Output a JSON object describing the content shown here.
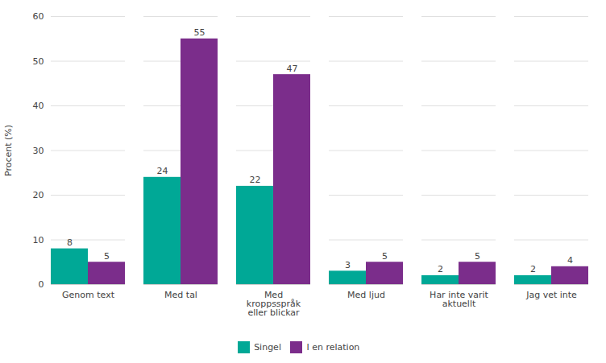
{
  "chart_data": {
    "type": "bar",
    "categories": [
      "Genom text",
      "Med tal",
      "Med\nkroppsspråk\neller blickar",
      "Med ljud",
      "Har inte varit\naktuellt",
      "Jag vet inte"
    ],
    "series": [
      {
        "name": "Singel",
        "color": "#00A896",
        "values": [
          8,
          24,
          22,
          3,
          2,
          2
        ]
      },
      {
        "name": "I en relation",
        "color": "#7B2D8B",
        "values": [
          5,
          55,
          47,
          5,
          5,
          4
        ]
      }
    ],
    "ylabel": "Procent (%)",
    "ylim": [
      0,
      60
    ],
    "yticks": [
      0,
      10,
      20,
      30,
      40,
      50,
      60
    ],
    "grid": true,
    "data_labels": true,
    "legend": "bottom"
  }
}
